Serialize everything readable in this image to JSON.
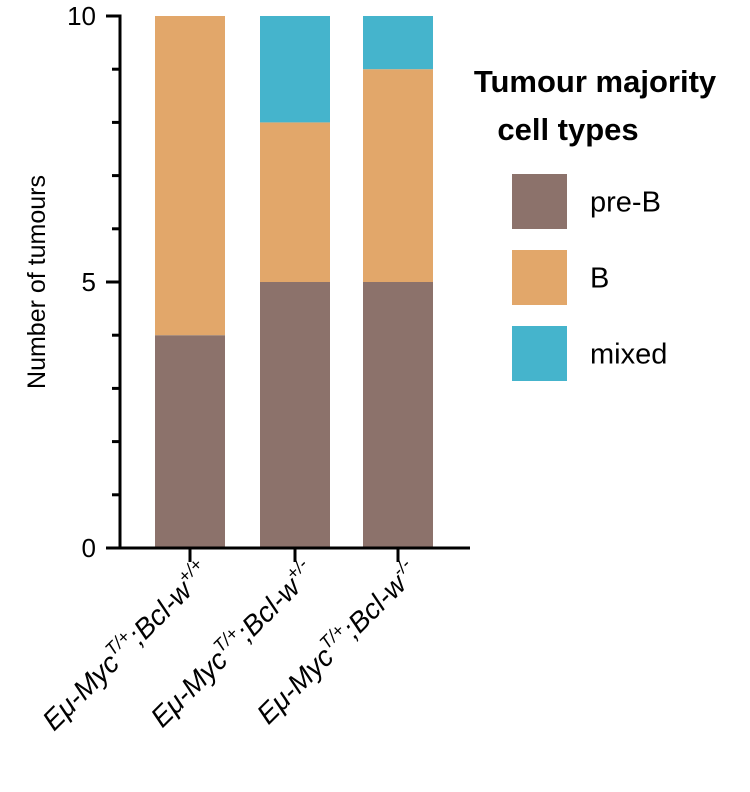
{
  "chart_data": {
    "type": "bar",
    "stacked": true,
    "title": "",
    "xlabel": "",
    "ylabel": "Number of tumours",
    "ylim": [
      0,
      10
    ],
    "yticks": [
      0,
      5,
      10
    ],
    "categories": [
      {
        "base": "Eμ-Myc",
        "sup1": "T/+",
        "mid": ";Bcl-w",
        "sup2": "+/+"
      },
      {
        "base": "Eμ-Myc",
        "sup1": "T/+",
        "mid": ";Bcl-w",
        "sup2": "+/-"
      },
      {
        "base": "Eμ-Myc",
        "sup1": "T/+",
        "mid": ";Bcl-w",
        "sup2": "-/-"
      }
    ],
    "series": [
      {
        "name": "pre-B",
        "color": "#8c726b",
        "values": [
          4,
          5,
          5
        ]
      },
      {
        "name": "B",
        "color": "#e2a76a",
        "values": [
          6,
          3,
          4
        ]
      },
      {
        "name": "mixed",
        "color": "#45b4cc",
        "values": [
          0,
          2,
          1
        ]
      }
    ],
    "legend": {
      "title_lines": [
        "Tumour majority",
        "cell types"
      ],
      "position": "right"
    }
  }
}
